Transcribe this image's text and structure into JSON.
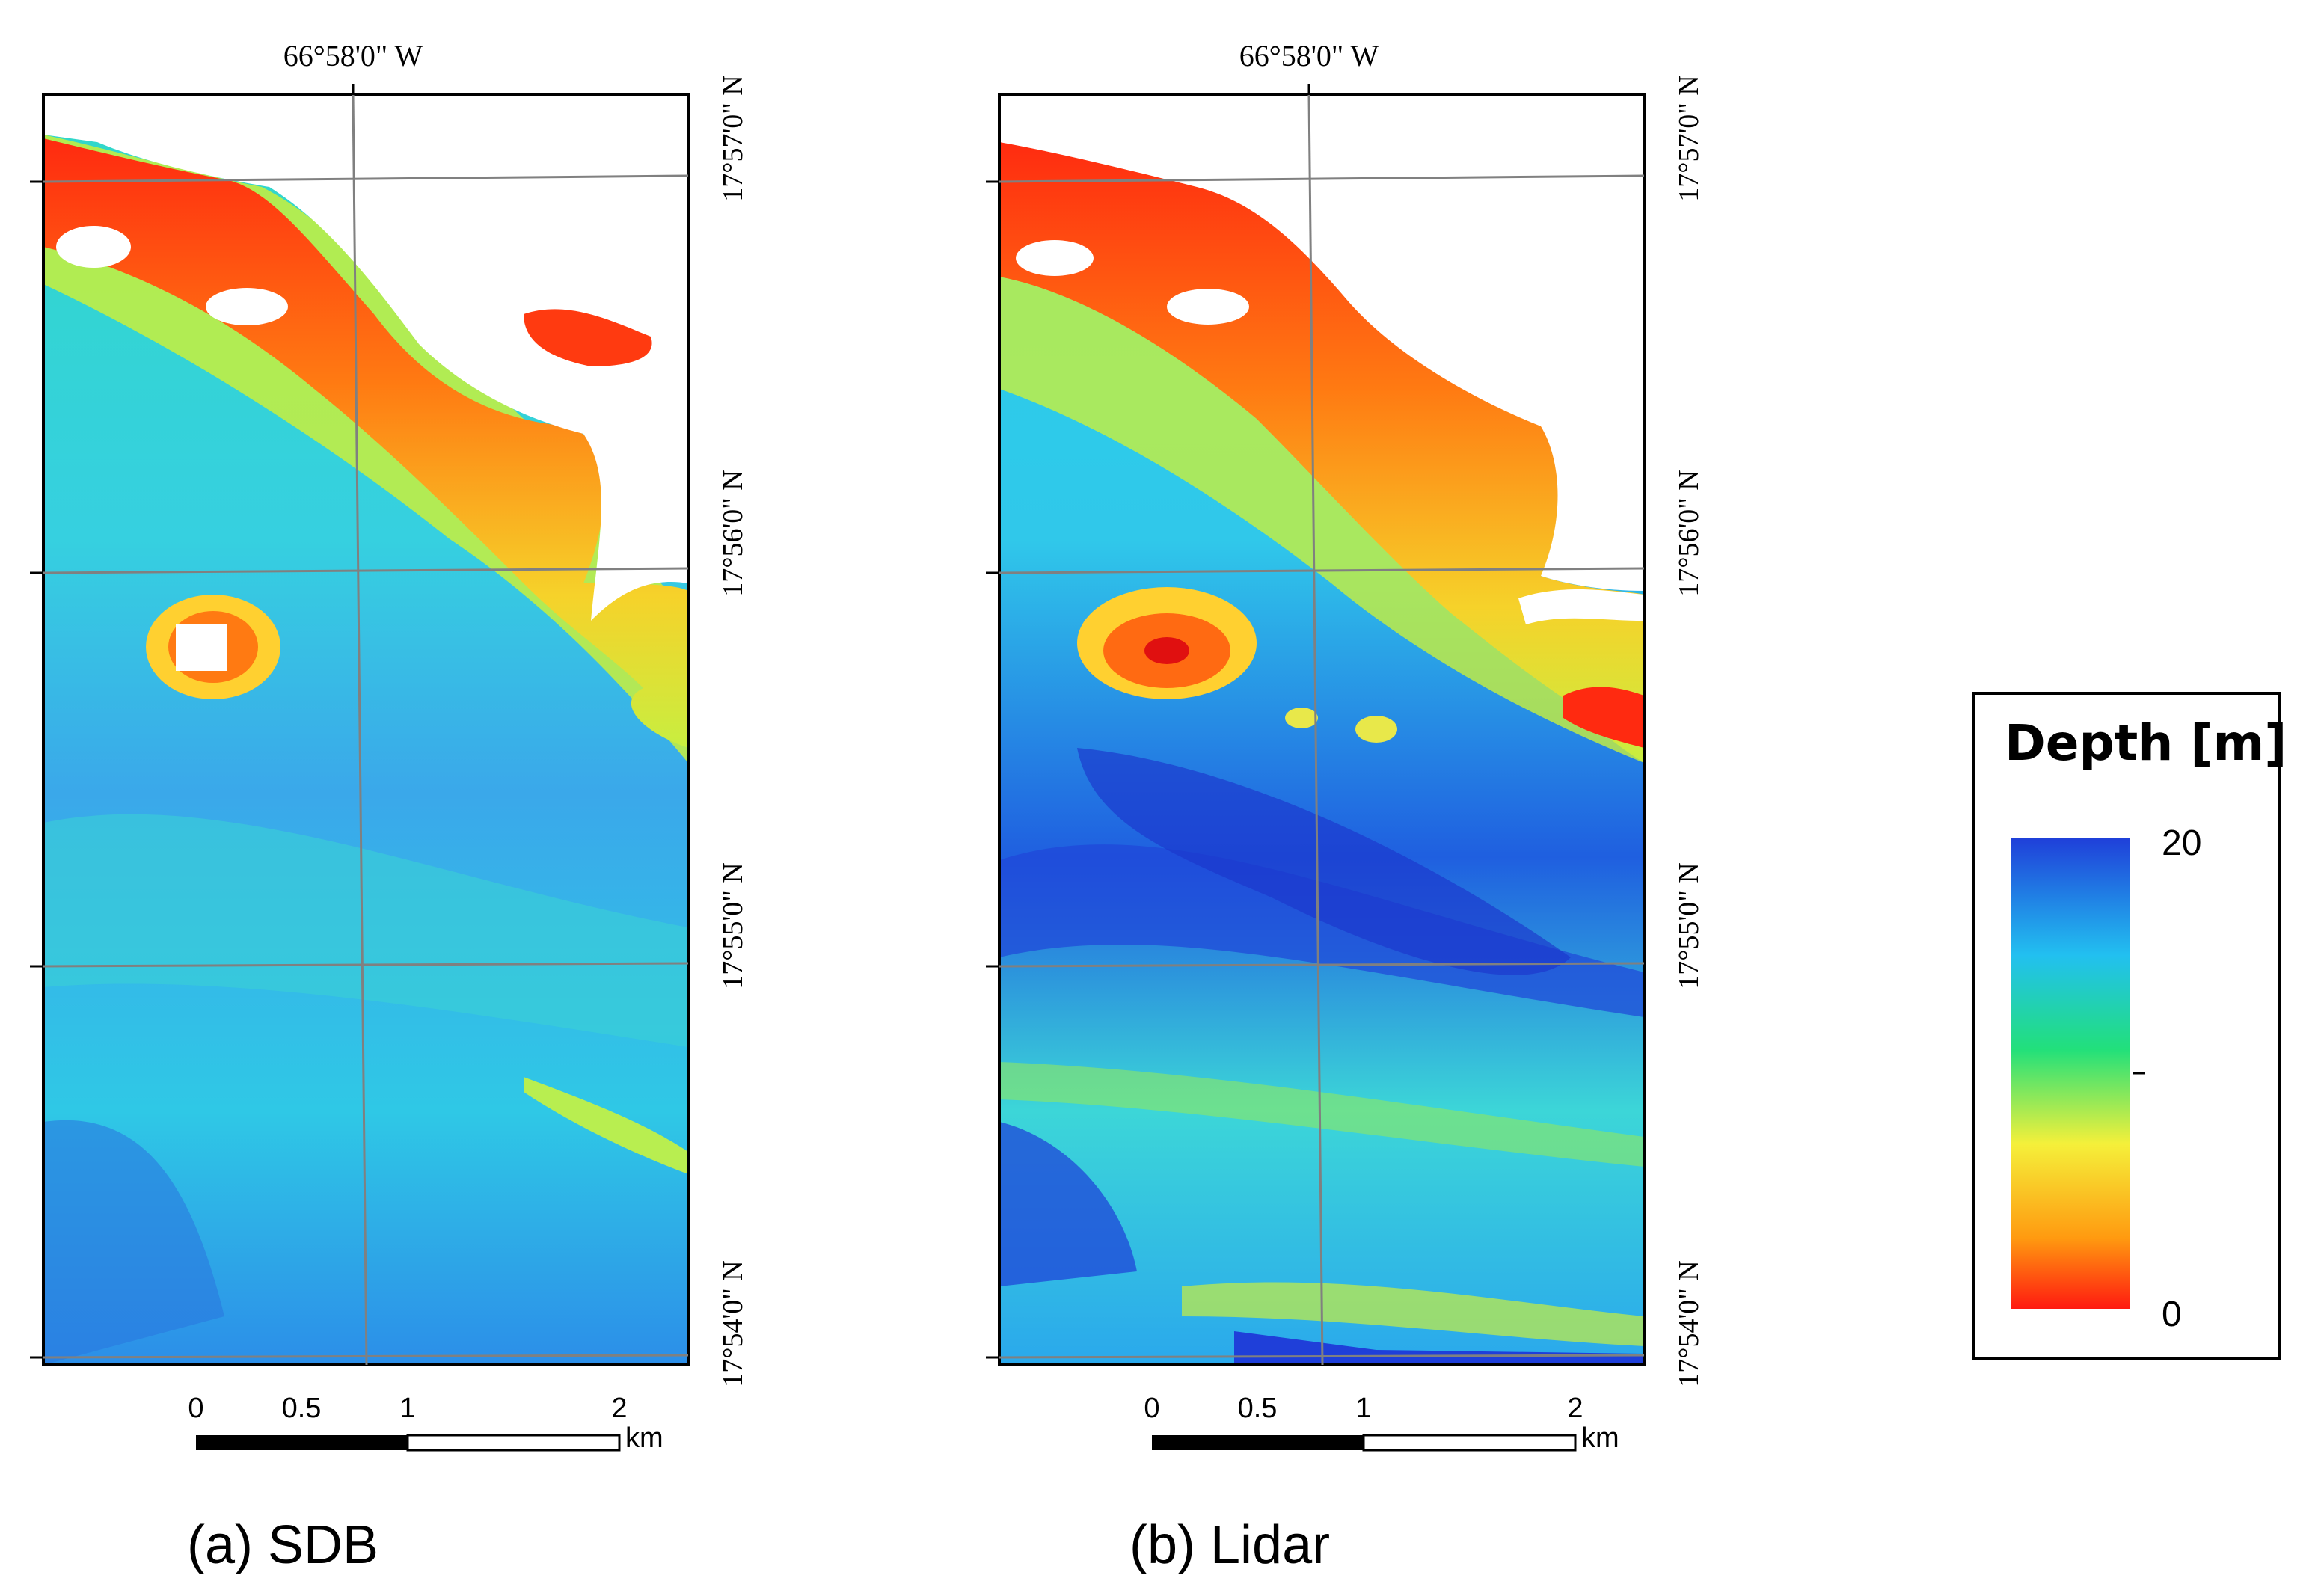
{
  "panels": [
    {
      "id": "sdb",
      "caption": "(a) SDB",
      "lon_label": "66°58'0\" W",
      "lat_labels": [
        "17°57'0\" N",
        "17°56'0\" N",
        "17°55'0\" N",
        "17°54'0\" N"
      ],
      "scale": {
        "ticks": [
          "0",
          "0.5",
          "1",
          "2"
        ],
        "unit": "km"
      }
    },
    {
      "id": "lidar",
      "caption": "(b) Lidar",
      "lon_label": "66°58'0\" W",
      "lat_labels": [
        "17°57'0\" N",
        "17°56'0\" N",
        "17°55'0\" N",
        "17°54'0\" N"
      ],
      "scale": {
        "ticks": [
          "0",
          "0.5",
          "1",
          "2"
        ],
        "unit": "km"
      }
    }
  ],
  "legend": {
    "title": "Depth [m]",
    "max_label": "20",
    "min_label": "0",
    "colors": [
      "#1f3fd9",
      "#22c0f0",
      "#22e07a",
      "#f5f03a",
      "#ff9a10",
      "#ff1a10"
    ]
  }
}
